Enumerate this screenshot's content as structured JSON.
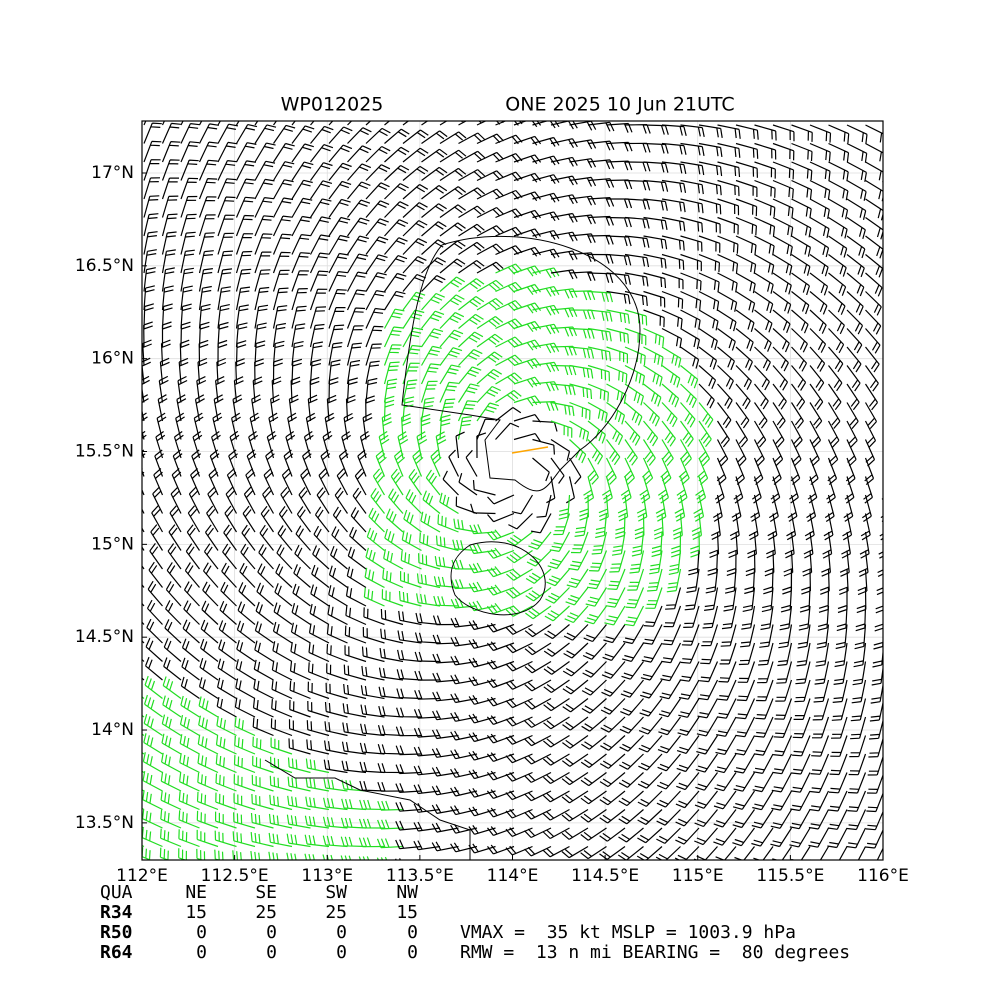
{
  "map": {
    "title_left": "WP012025",
    "title_right": "ONE 2025 10 Jun 21UTC",
    "xlim": [
      112,
      116
    ],
    "ylim": [
      13.3,
      17.28
    ],
    "xticks": [
      {
        "value": 112,
        "label": "112°E"
      },
      {
        "value": 112.5,
        "label": "112.5°E"
      },
      {
        "value": 113,
        "label": "113°E"
      },
      {
        "value": 113.5,
        "label": "113.5°E"
      },
      {
        "value": 114,
        "label": "114°E"
      },
      {
        "value": 114.5,
        "label": "114.5°E"
      },
      {
        "value": 115,
        "label": "115°E"
      },
      {
        "value": 115.5,
        "label": "115.5°E"
      },
      {
        "value": 116,
        "label": "116°E"
      }
    ],
    "yticks": [
      {
        "value": 13.5,
        "label": "13.5°N"
      },
      {
        "value": 14,
        "label": "14°N"
      },
      {
        "value": 14.5,
        "label": "14.5°N"
      },
      {
        "value": 15,
        "label": "15°N"
      },
      {
        "value": 15.5,
        "label": "15.5°N"
      },
      {
        "value": 16,
        "label": "16°N"
      },
      {
        "value": 16.5,
        "label": "16.5°N"
      },
      {
        "value": 17,
        "label": "17°N"
      }
    ],
    "grid": true
  },
  "table": {
    "header": [
      "QUA",
      "NE",
      "SE",
      "SW",
      "NW"
    ],
    "rows": [
      [
        "R34",
        15,
        25,
        25,
        15
      ],
      [
        "R50",
        0,
        0,
        0,
        0
      ],
      [
        "R64",
        0,
        0,
        0,
        0
      ]
    ]
  },
  "info": [
    "VMAX =  35 kt MSLP = 1003.9 hPa",
    "RMW =  13 n mi BEARING =  80 degrees"
  ]
}
